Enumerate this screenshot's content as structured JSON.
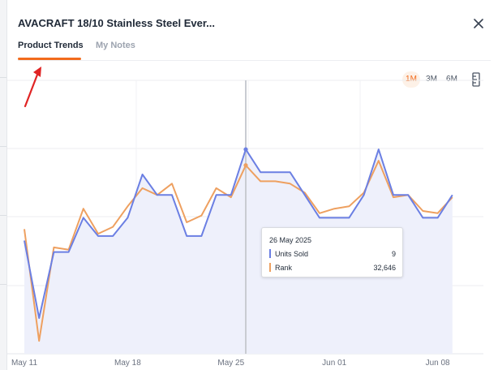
{
  "header": {
    "title": "AVACRAFT 18/10 Stainless Steel Ever...",
    "close_icon": "close-icon"
  },
  "tabs": [
    {
      "label": "Product Trends",
      "active": true
    },
    {
      "label": "My Notes",
      "active": false
    }
  ],
  "range_buttons": [
    {
      "label": "1M",
      "active": true
    },
    {
      "label": "3M",
      "active": false
    },
    {
      "label": "6M",
      "active": false
    }
  ],
  "ruler_icon": "ruler-icon",
  "colors": {
    "accent": "#f26b1d",
    "units_sold": "#6b7fe3",
    "rank": "#eea060",
    "area_fill": "#eef0fb",
    "annotation_arrow": "#e02424"
  },
  "tooltip": {
    "date": "26 May 2025",
    "rows": [
      {
        "label": "Units Sold",
        "value": "9"
      },
      {
        "label": "Rank",
        "value": "32,646"
      }
    ]
  },
  "chart_data": {
    "type": "line",
    "x": [
      "May 11",
      "May 12",
      "May 13",
      "May 14",
      "May 15",
      "May 16",
      "May 17",
      "May 18",
      "May 19",
      "May 20",
      "May 21",
      "May 22",
      "May 23",
      "May 24",
      "May 25",
      "May 26",
      "May 27",
      "May 28",
      "May 29",
      "May 30",
      "May 31",
      "Jun 01",
      "Jun 02",
      "Jun 03",
      "Jun 04",
      "Jun 05",
      "Jun 06",
      "Jun 07",
      "Jun 08",
      "Jun 09"
    ],
    "x_tick_labels": [
      "May 11",
      "May 18",
      "May 25",
      "Jun 01",
      "Jun 08"
    ],
    "highlighted_x": "May 26",
    "series": [
      {
        "name": "Units Sold",
        "values": [
          5,
          1.6,
          4.5,
          4.5,
          6,
          5.2,
          5.2,
          6,
          7.9,
          7,
          7,
          5.2,
          5.2,
          7,
          7,
          9,
          8,
          8,
          8,
          7,
          6,
          6,
          6,
          7,
          9,
          7,
          7,
          6,
          6,
          7
        ]
      },
      {
        "name": "Rank",
        "values": [
          5.5,
          0.6,
          4.7,
          4.6,
          6.4,
          5.3,
          5.6,
          6.5,
          7.3,
          7,
          7.5,
          5.8,
          6.1,
          7.3,
          6.9,
          8.3,
          7.6,
          7.6,
          7.5,
          7.1,
          6.2,
          6.4,
          6.5,
          7.1,
          8.5,
          6.9,
          7,
          6.3,
          6.2,
          6.9
        ]
      }
    ],
    "grid": true,
    "legend": "none"
  }
}
